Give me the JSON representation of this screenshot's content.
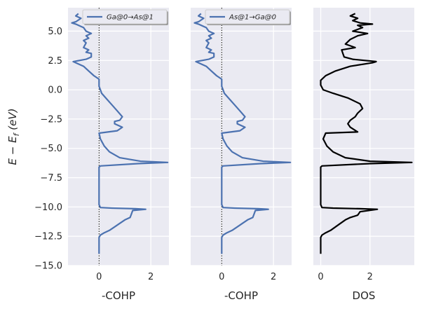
{
  "chart_data": [
    {
      "type": "line",
      "title": "",
      "xlabel": "-COHP",
      "ylabel": "E − E_f (eV)",
      "xlim": [
        -1.2,
        2.7
      ],
      "ylim": [
        -15,
        7
      ],
      "xticks": [
        0,
        2
      ],
      "yticks": [
        5.0,
        2.5,
        0.0,
        -2.5,
        -5.0,
        -7.5,
        -10.0,
        -12.5,
        -15.0
      ],
      "ytick_labels": [
        "5.0",
        "2.5",
        "0.0",
        "−2.5",
        "−5.0",
        "−7.5",
        "−10.0",
        "−12.5",
        "−15.0"
      ],
      "grid": true,
      "legend_position": "top-right",
      "zero_line": true,
      "series": [
        {
          "name": "Ga@0→As@1",
          "color": "#4c72b0",
          "points": [
            [
              0.0,
              -14.0
            ],
            [
              0.0,
              -12.6
            ],
            [
              0.05,
              -12.4
            ],
            [
              0.2,
              -12.2
            ],
            [
              0.4,
              -12.0
            ],
            [
              0.6,
              -11.7
            ],
            [
              0.8,
              -11.4
            ],
            [
              1.0,
              -11.1
            ],
            [
              1.2,
              -10.9
            ],
            [
              1.25,
              -10.6
            ],
            [
              1.3,
              -10.3
            ],
            [
              1.8,
              -10.2
            ],
            [
              1.4,
              -10.15
            ],
            [
              0.5,
              -10.1
            ],
            [
              0.05,
              -10.05
            ],
            [
              0.0,
              -9.8
            ],
            [
              0.0,
              -6.6
            ],
            [
              0.05,
              -6.5
            ],
            [
              1.5,
              -6.3
            ],
            [
              2.65,
              -6.2
            ],
            [
              1.6,
              -6.1
            ],
            [
              0.8,
              -5.8
            ],
            [
              0.4,
              -5.3
            ],
            [
              0.2,
              -4.8
            ],
            [
              0.05,
              -4.2
            ],
            [
              0.0,
              -3.7
            ],
            [
              0.7,
              -3.5
            ],
            [
              0.9,
              -3.2
            ],
            [
              0.6,
              -2.9
            ],
            [
              0.6,
              -2.7
            ],
            [
              0.8,
              -2.6
            ],
            [
              0.9,
              -2.3
            ],
            [
              0.7,
              -1.8
            ],
            [
              0.5,
              -1.3
            ],
            [
              0.3,
              -0.8
            ],
            [
              0.1,
              -0.3
            ],
            [
              0.05,
              0.0
            ],
            [
              0.0,
              0.3
            ],
            [
              0.0,
              0.9
            ],
            [
              -0.2,
              1.2
            ],
            [
              -0.4,
              1.6
            ],
            [
              -0.6,
              2.0
            ],
            [
              -1.0,
              2.4
            ],
            [
              -0.5,
              2.6
            ],
            [
              -0.3,
              2.8
            ],
            [
              -0.3,
              3.1
            ],
            [
              -0.5,
              3.2
            ],
            [
              -0.4,
              3.4
            ],
            [
              -0.6,
              3.6
            ],
            [
              -0.5,
              4.0
            ],
            [
              -0.6,
              4.2
            ],
            [
              -0.4,
              4.4
            ],
            [
              -0.5,
              4.6
            ],
            [
              -0.3,
              4.8
            ],
            [
              -0.5,
              5.0
            ],
            [
              -0.6,
              5.3
            ],
            [
              -0.7,
              5.4
            ],
            [
              -0.9,
              5.6
            ],
            [
              -1.05,
              5.7
            ],
            [
              -0.9,
              5.8
            ],
            [
              -0.7,
              6.1
            ],
            [
              -0.9,
              6.3
            ],
            [
              -0.8,
              6.5
            ]
          ]
        }
      ]
    },
    {
      "type": "line",
      "title": "",
      "xlabel": "-COHP",
      "ylabel": "",
      "xlim": [
        -1.2,
        2.7
      ],
      "ylim": [
        -15,
        7
      ],
      "xticks": [
        0,
        2
      ],
      "grid": true,
      "legend_position": "top-right",
      "zero_line": true,
      "series": [
        {
          "name": "As@1→Ga@0",
          "color": "#4c72b0",
          "points": [
            [
              0.0,
              -14.0
            ],
            [
              0.0,
              -12.6
            ],
            [
              0.05,
              -12.4
            ],
            [
              0.2,
              -12.2
            ],
            [
              0.4,
              -12.0
            ],
            [
              0.6,
              -11.7
            ],
            [
              0.8,
              -11.4
            ],
            [
              1.0,
              -11.1
            ],
            [
              1.2,
              -10.9
            ],
            [
              1.25,
              -10.6
            ],
            [
              1.3,
              -10.3
            ],
            [
              1.8,
              -10.2
            ],
            [
              1.4,
              -10.15
            ],
            [
              0.5,
              -10.1
            ],
            [
              0.05,
              -10.05
            ],
            [
              0.0,
              -9.8
            ],
            [
              0.0,
              -6.6
            ],
            [
              0.05,
              -6.5
            ],
            [
              1.5,
              -6.3
            ],
            [
              2.65,
              -6.2
            ],
            [
              1.6,
              -6.1
            ],
            [
              0.8,
              -5.8
            ],
            [
              0.4,
              -5.3
            ],
            [
              0.2,
              -4.8
            ],
            [
              0.05,
              -4.2
            ],
            [
              0.0,
              -3.7
            ],
            [
              0.7,
              -3.5
            ],
            [
              0.9,
              -3.2
            ],
            [
              0.6,
              -2.9
            ],
            [
              0.6,
              -2.7
            ],
            [
              0.8,
              -2.6
            ],
            [
              0.9,
              -2.3
            ],
            [
              0.7,
              -1.8
            ],
            [
              0.5,
              -1.3
            ],
            [
              0.3,
              -0.8
            ],
            [
              0.1,
              -0.3
            ],
            [
              0.05,
              0.0
            ],
            [
              0.0,
              0.3
            ],
            [
              0.0,
              0.9
            ],
            [
              -0.2,
              1.2
            ],
            [
              -0.4,
              1.6
            ],
            [
              -0.6,
              2.0
            ],
            [
              -1.0,
              2.4
            ],
            [
              -0.5,
              2.6
            ],
            [
              -0.3,
              2.8
            ],
            [
              -0.3,
              3.1
            ],
            [
              -0.5,
              3.2
            ],
            [
              -0.4,
              3.4
            ],
            [
              -0.6,
              3.6
            ],
            [
              -0.5,
              4.0
            ],
            [
              -0.6,
              4.2
            ],
            [
              -0.4,
              4.4
            ],
            [
              -0.5,
              4.6
            ],
            [
              -0.3,
              4.8
            ],
            [
              -0.5,
              5.0
            ],
            [
              -0.6,
              5.3
            ],
            [
              -0.7,
              5.4
            ],
            [
              -0.9,
              5.6
            ],
            [
              -1.05,
              5.7
            ],
            [
              -0.9,
              5.8
            ],
            [
              -0.7,
              6.1
            ],
            [
              -0.9,
              6.3
            ],
            [
              -0.8,
              6.5
            ]
          ]
        }
      ]
    },
    {
      "type": "line",
      "title": "",
      "xlabel": "DOS",
      "ylabel": "",
      "xlim": [
        -0.3,
        3.8
      ],
      "ylim": [
        -15,
        7
      ],
      "xticks": [
        0,
        2
      ],
      "grid": true,
      "zero_line": false,
      "series": [
        {
          "color": "#000000",
          "points": [
            [
              0.0,
              -14.0
            ],
            [
              0.0,
              -12.6
            ],
            [
              0.05,
              -12.4
            ],
            [
              0.2,
              -12.2
            ],
            [
              0.4,
              -12.0
            ],
            [
              0.6,
              -11.7
            ],
            [
              0.8,
              -11.4
            ],
            [
              1.0,
              -11.1
            ],
            [
              1.2,
              -10.9
            ],
            [
              1.5,
              -10.7
            ],
            [
              1.6,
              -10.4
            ],
            [
              2.3,
              -10.2
            ],
            [
              1.6,
              -10.15
            ],
            [
              0.5,
              -10.1
            ],
            [
              0.05,
              -10.05
            ],
            [
              0.0,
              -9.8
            ],
            [
              0.0,
              -6.6
            ],
            [
              0.05,
              -6.5
            ],
            [
              2.0,
              -6.3
            ],
            [
              3.7,
              -6.2
            ],
            [
              2.0,
              -6.1
            ],
            [
              1.0,
              -5.8
            ],
            [
              0.5,
              -5.3
            ],
            [
              0.25,
              -4.8
            ],
            [
              0.1,
              -4.2
            ],
            [
              0.2,
              -3.7
            ],
            [
              1.5,
              -3.6
            ],
            [
              1.2,
              -3.2
            ],
            [
              1.1,
              -2.9
            ],
            [
              1.2,
              -2.6
            ],
            [
              1.4,
              -2.3
            ],
            [
              1.5,
              -2.0
            ],
            [
              1.7,
              -1.6
            ],
            [
              1.6,
              -1.2
            ],
            [
              1.1,
              -0.7
            ],
            [
              0.5,
              -0.3
            ],
            [
              0.1,
              0.0
            ],
            [
              0.0,
              0.4
            ],
            [
              0.0,
              0.8
            ],
            [
              0.2,
              1.2
            ],
            [
              0.6,
              1.6
            ],
            [
              1.2,
              2.0
            ],
            [
              2.1,
              2.3
            ],
            [
              2.25,
              2.4
            ],
            [
              1.3,
              2.6
            ],
            [
              0.95,
              2.8
            ],
            [
              0.9,
              3.1
            ],
            [
              0.85,
              3.4
            ],
            [
              1.4,
              3.6
            ],
            [
              1.0,
              3.9
            ],
            [
              1.2,
              4.3
            ],
            [
              1.5,
              4.6
            ],
            [
              1.9,
              4.8
            ],
            [
              1.3,
              5.0
            ],
            [
              1.7,
              5.3
            ],
            [
              1.5,
              5.5
            ],
            [
              2.1,
              5.6
            ],
            [
              1.6,
              5.7
            ],
            [
              1.3,
              5.9
            ],
            [
              1.5,
              6.1
            ],
            [
              1.2,
              6.3
            ],
            [
              1.4,
              6.5
            ]
          ]
        }
      ]
    }
  ]
}
